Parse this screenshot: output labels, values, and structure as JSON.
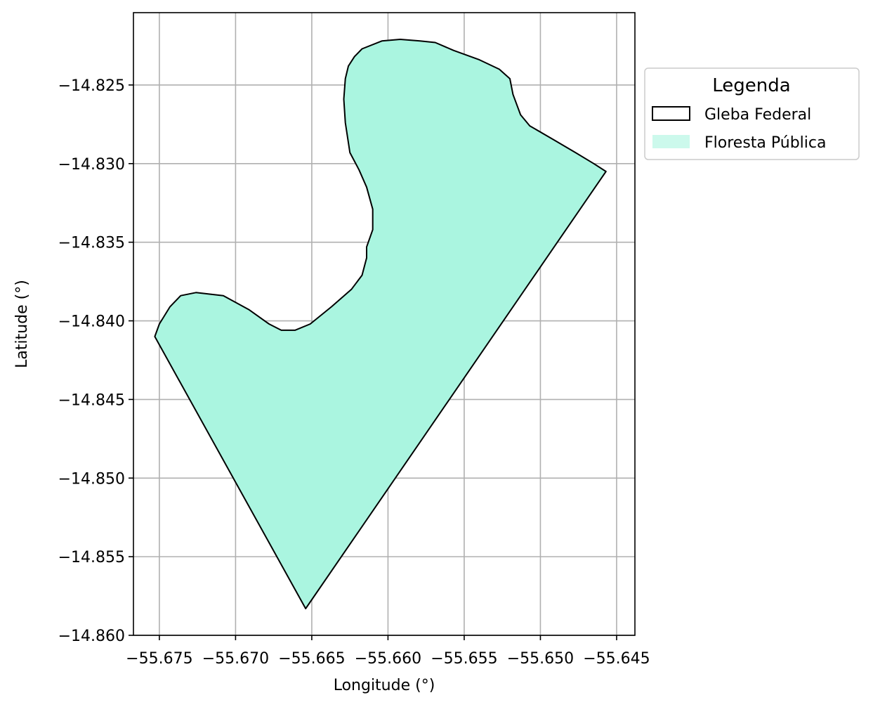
{
  "chart_data": {
    "type": "map",
    "xlabel": "Longitude (°)",
    "ylabel": "Latitude (°)",
    "xlim": [
      -55.6767,
      -55.6438
    ],
    "ylim": [
      -14.86,
      -14.8204
    ],
    "grid": true,
    "xticks": [
      -55.675,
      -55.67,
      -55.665,
      -55.66,
      -55.655,
      -55.65,
      -55.645
    ],
    "xtick_labels": [
      "−55.675",
      "−55.670",
      "−55.665",
      "−55.660",
      "−55.655",
      "−55.650",
      "−55.645"
    ],
    "yticks": [
      -14.825,
      -14.83,
      -14.835,
      -14.84,
      -14.845,
      -14.85,
      -14.855,
      -14.86
    ],
    "ytick_labels": [
      "−14.825",
      "−14.830",
      "−14.835",
      "−14.840",
      "−14.845",
      "−14.850",
      "−14.855",
      "−14.860"
    ],
    "legend": {
      "title": "Legenda",
      "placement": "outside-right-top",
      "entries": [
        {
          "label": "Gleba Federal",
          "style": "outline",
          "color": "#000000"
        },
        {
          "label": "Floresta Pública",
          "style": "fill",
          "color": "#aaf5e0"
        }
      ]
    },
    "colors": {
      "fill": "#aaf5e0",
      "outline": "#000000",
      "grid": "#b0b0b0"
    },
    "polygon": {
      "name": "Gleba Federal",
      "coordinates": [
        [
          -55.6753,
          -14.841
        ],
        [
          -55.675,
          -14.8402
        ],
        [
          -55.6743,
          -14.8391
        ],
        [
          -55.6736,
          -14.8384
        ],
        [
          -55.6726,
          -14.8382
        ],
        [
          -55.6708,
          -14.8384
        ],
        [
          -55.6691,
          -14.8393
        ],
        [
          -55.6678,
          -14.8402
        ],
        [
          -55.667,
          -14.8406
        ],
        [
          -55.6661,
          -14.8406
        ],
        [
          -55.6651,
          -14.8402
        ],
        [
          -55.6637,
          -14.8391
        ],
        [
          -55.6624,
          -14.838
        ],
        [
          -55.6617,
          -14.8371
        ],
        [
          -55.6614,
          -14.836
        ],
        [
          -55.6614,
          -14.8353
        ],
        [
          -55.661,
          -14.8342
        ],
        [
          -55.661,
          -14.8329
        ],
        [
          -55.6614,
          -14.8315
        ],
        [
          -55.6619,
          -14.8304
        ],
        [
          -55.6625,
          -14.8293
        ],
        [
          -55.6628,
          -14.8274
        ],
        [
          -55.6629,
          -14.8259
        ],
        [
          -55.6628,
          -14.8246
        ],
        [
          -55.6626,
          -14.8238
        ],
        [
          -55.6622,
          -14.8232
        ],
        [
          -55.6617,
          -14.8227
        ],
        [
          -55.6604,
          -14.8222
        ],
        [
          -55.6592,
          -14.8221
        ],
        [
          -55.6579,
          -14.8222
        ],
        [
          -55.6569,
          -14.8223
        ],
        [
          -55.6557,
          -14.8228
        ],
        [
          -55.654,
          -14.8234
        ],
        [
          -55.6527,
          -14.824
        ],
        [
          -55.652,
          -14.8246
        ],
        [
          -55.6518,
          -14.8256
        ],
        [
          -55.6513,
          -14.8269
        ],
        [
          -55.6507,
          -14.8276
        ],
        [
          -55.6491,
          -14.8285
        ],
        [
          -55.6477,
          -14.8293
        ],
        [
          -55.6465,
          -14.83
        ],
        [
          -55.6457,
          -14.8305
        ],
        [
          -55.6654,
          -14.8583
        ]
      ]
    }
  }
}
